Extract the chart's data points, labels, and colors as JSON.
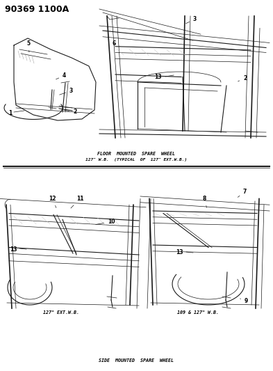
{
  "title": "90369 1100A",
  "section1_label": "FLOOR  MOUNTED  SPARE  WHEEL",
  "section1_sublabel": "127\" W.B.  (TYPICAL  OF  127\" EXT.W.B.)",
  "section2_label": "SIDE  MOUNTED  SPARE  WHEEL",
  "sub1_label": "127\" EXT.W.B.",
  "sub2_label": "109 & 127\" W.B.",
  "bg_color": "#ffffff",
  "line_color": "#1a1a1a",
  "text_color": "#000000",
  "gray_color": "#888888",
  "light_gray": "#cccccc",
  "font_size_title": 8,
  "font_size_label": 5,
  "font_size_part": 5.5
}
